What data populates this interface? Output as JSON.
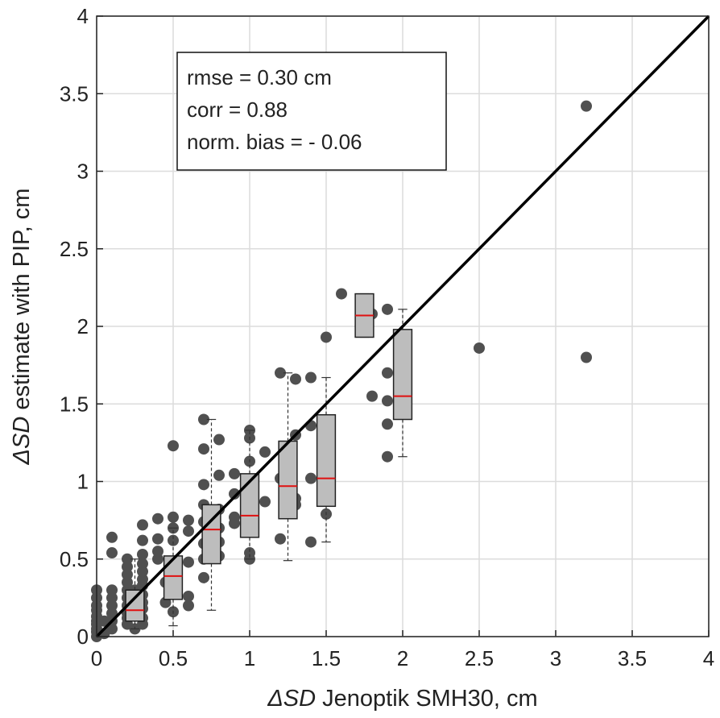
{
  "chart_data": {
    "type": "scatter",
    "xlabel_symbol": "ΔSD",
    "xlabel_text": " Jenoptik SMH30, cm",
    "ylabel_symbol": "ΔSD",
    "ylabel_text": " estimate with PIP, cm",
    "annotation": [
      "rmse = 0.30 cm",
      "corr = 0.88",
      "norm. bias = - 0.06"
    ],
    "xlim": [
      0,
      4
    ],
    "ylim": [
      0,
      4
    ],
    "xticks": [
      0,
      0.5,
      1,
      1.5,
      2,
      2.5,
      3,
      3.5,
      4
    ],
    "yticks": [
      0,
      0.5,
      1,
      1.5,
      2,
      2.5,
      3,
      3.5,
      4
    ],
    "grid": true,
    "color": "#505050",
    "x": [
      0,
      0,
      0,
      0,
      0,
      0,
      0,
      0,
      0,
      0,
      0.05,
      0.05,
      0.1,
      0.1,
      0.1,
      0.1,
      0.1,
      0.1,
      0.1,
      0.1,
      0.2,
      0.2,
      0.2,
      0.2,
      0.2,
      0.2,
      0.2,
      0.2,
      0.2,
      0.2,
      0.25,
      0.25,
      0.25,
      0.25,
      0.3,
      0.3,
      0.3,
      0.3,
      0.3,
      0.3,
      0.3,
      0.3,
      0.3,
      0.3,
      0.3,
      0.3,
      0.4,
      0.4,
      0.4,
      0.4,
      0.45,
      0.45,
      0.5,
      0.5,
      0.5,
      0.5,
      0.5,
      0.6,
      0.6,
      0.6,
      0.6,
      0.6,
      0.7,
      0.7,
      0.7,
      0.7,
      0.7,
      0.7,
      0.7,
      0.7,
      0.8,
      0.8,
      0.8,
      0.8,
      0.8,
      0.8,
      0.9,
      0.9,
      0.9,
      0.9,
      1,
      1,
      1,
      1,
      1,
      1,
      1,
      1,
      1,
      1.1,
      1.1,
      1.2,
      1.2,
      1.2,
      1.3,
      1.3,
      1.3,
      1.3,
      1.4,
      1.4,
      1.4,
      1.4,
      1.5,
      1.5,
      1.6,
      1.8,
      1.8,
      1.9,
      1.9,
      1.9,
      1.9,
      1.9,
      2.5,
      3.2,
      3.2
    ],
    "values": [
      0,
      0.03,
      0.05,
      0.08,
      0.1,
      0.13,
      0.17,
      0.2,
      0.25,
      0.3,
      0.02,
      0.1,
      0.05,
      0.1,
      0.15,
      0.2,
      0.25,
      0.3,
      0.54,
      0.64,
      0.08,
      0.12,
      0.15,
      0.2,
      0.25,
      0.3,
      0.35,
      0.4,
      0.45,
      0.5,
      0.05,
      0.15,
      0.2,
      0.3,
      0.08,
      0.12,
      0.18,
      0.22,
      0.27,
      0.33,
      0.37,
      0.42,
      0.47,
      0.53,
      0.62,
      0.72,
      0.63,
      0.76,
      0.5,
      0.55,
      0.22,
      0.35,
      1.23,
      0.77,
      0.7,
      0.62,
      0.16,
      0.68,
      0.75,
      0.2,
      0.26,
      0.48,
      1.4,
      1.21,
      0.98,
      0.85,
      0.74,
      0.6,
      0.5,
      0.38,
      1.27,
      1.04,
      0.82,
      0.7,
      0.61,
      0.52,
      1.05,
      0.92,
      0.77,
      0.73,
      1.33,
      1.28,
      1.13,
      0.92,
      0.88,
      0.84,
      0.76,
      0.54,
      0.5,
      1.19,
      0.87,
      1.7,
      1.02,
      0.63,
      1.66,
      1.3,
      0.89,
      0.85,
      1.67,
      1.36,
      1.02,
      0.61,
      1.93,
      0.79,
      2.21,
      2.08,
      1.55,
      2.11,
      1.7,
      1.52,
      1.37,
      1.16,
      1.86,
      3.42,
      1.8
    ],
    "boxes": [
      {
        "position": 0.25,
        "whisker_low": 0.05,
        "q1": 0.1,
        "median": 0.17,
        "q3": 0.3,
        "whisker_high": 0.5
      },
      {
        "position": 0.5,
        "whisker_low": 0.07,
        "q1": 0.24,
        "median": 0.39,
        "q3": 0.52,
        "whisker_high": 0.7
      },
      {
        "position": 0.75,
        "whisker_low": 0.17,
        "q1": 0.47,
        "median": 0.69,
        "q3": 0.85,
        "whisker_high": 1.4
      },
      {
        "position": 1,
        "whisker_low": 0.5,
        "q1": 0.64,
        "median": 0.78,
        "q3": 1.05,
        "whisker_high": 1.33
      },
      {
        "position": 1.25,
        "whisker_low": 0.49,
        "q1": 0.76,
        "median": 0.97,
        "q3": 1.26,
        "whisker_high": 1.7
      },
      {
        "position": 1.5,
        "whisker_low": 0.61,
        "q1": 0.84,
        "median": 1.02,
        "q3": 1.43,
        "whisker_high": 1.67
      },
      {
        "position": 1.75,
        "whisker_low": 1.93,
        "q1": 1.93,
        "median": 2.07,
        "q3": 2.21,
        "whisker_high": 2.21
      },
      {
        "position": 2,
        "whisker_low": 1.16,
        "q1": 1.4,
        "median": 1.55,
        "q3": 1.98,
        "whisker_high": 2.11
      }
    ],
    "box_color": "#bdbdbd",
    "median_color": "#e01010",
    "reference_line": {
      "x": [
        0,
        4
      ],
      "y": [
        0,
        4
      ],
      "color": "#000000"
    }
  }
}
